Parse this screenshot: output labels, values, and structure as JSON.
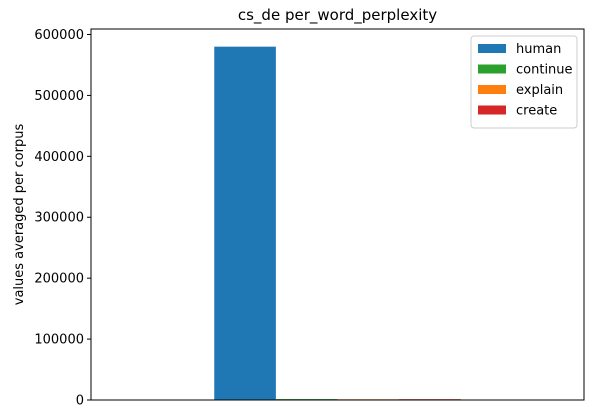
{
  "chart_data": {
    "type": "bar",
    "title": "cs_de per_word_perplexity",
    "xlabel": "",
    "ylabel": "values averaged per corpus",
    "categories": [
      ""
    ],
    "series": [
      {
        "name": "human",
        "values": [
          580000
        ],
        "color": "#1f77b4"
      },
      {
        "name": "continue",
        "values": [
          1500
        ],
        "color": "#2ca02c"
      },
      {
        "name": "explain",
        "values": [
          1200
        ],
        "color": "#ff7f0e"
      },
      {
        "name": "create",
        "values": [
          1300
        ],
        "color": "#d62728"
      }
    ],
    "yticks": [
      0,
      100000,
      200000,
      300000,
      400000,
      500000,
      600000
    ],
    "ytick_labels": [
      "0",
      "100000",
      "200000",
      "300000",
      "400000",
      "500000",
      "600000"
    ],
    "ylim": [
      0,
      609000
    ],
    "grid": false,
    "legend_position": "top-right"
  }
}
